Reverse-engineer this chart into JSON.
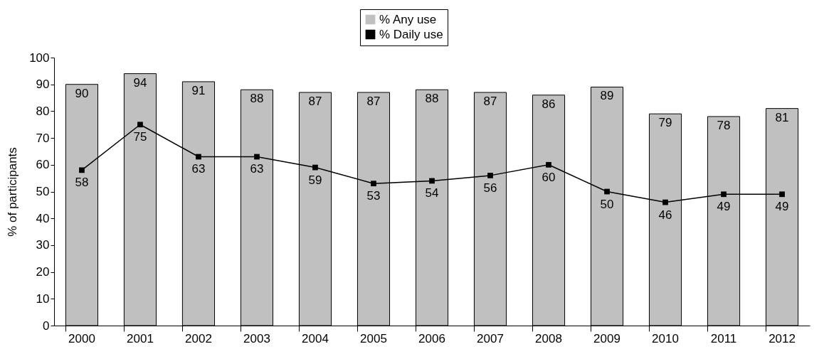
{
  "chart_data": {
    "type": "bar",
    "ylabel": "% of participants",
    "categories": [
      "2000",
      "2001",
      "2002",
      "2003",
      "2004",
      "2005",
      "2006",
      "2007",
      "2008",
      "2009",
      "2010",
      "2011",
      "2012"
    ],
    "series": [
      {
        "name": "% Any use",
        "color": "#c0c0c0",
        "values": [
          90,
          94,
          91,
          88,
          87,
          87,
          88,
          87,
          86,
          89,
          79,
          78,
          81
        ]
      },
      {
        "name": "% Daily use",
        "type": "line",
        "color": "#000000",
        "marker": "square",
        "values": [
          58,
          75,
          63,
          63,
          59,
          53,
          54,
          56,
          60,
          50,
          46,
          49,
          49
        ]
      }
    ],
    "ylim": [
      0,
      100
    ],
    "yticks": [
      0,
      10,
      20,
      30,
      40,
      50,
      60,
      70,
      80,
      90,
      100
    ],
    "grid": false,
    "legend": "top",
    "data_labels": true
  }
}
